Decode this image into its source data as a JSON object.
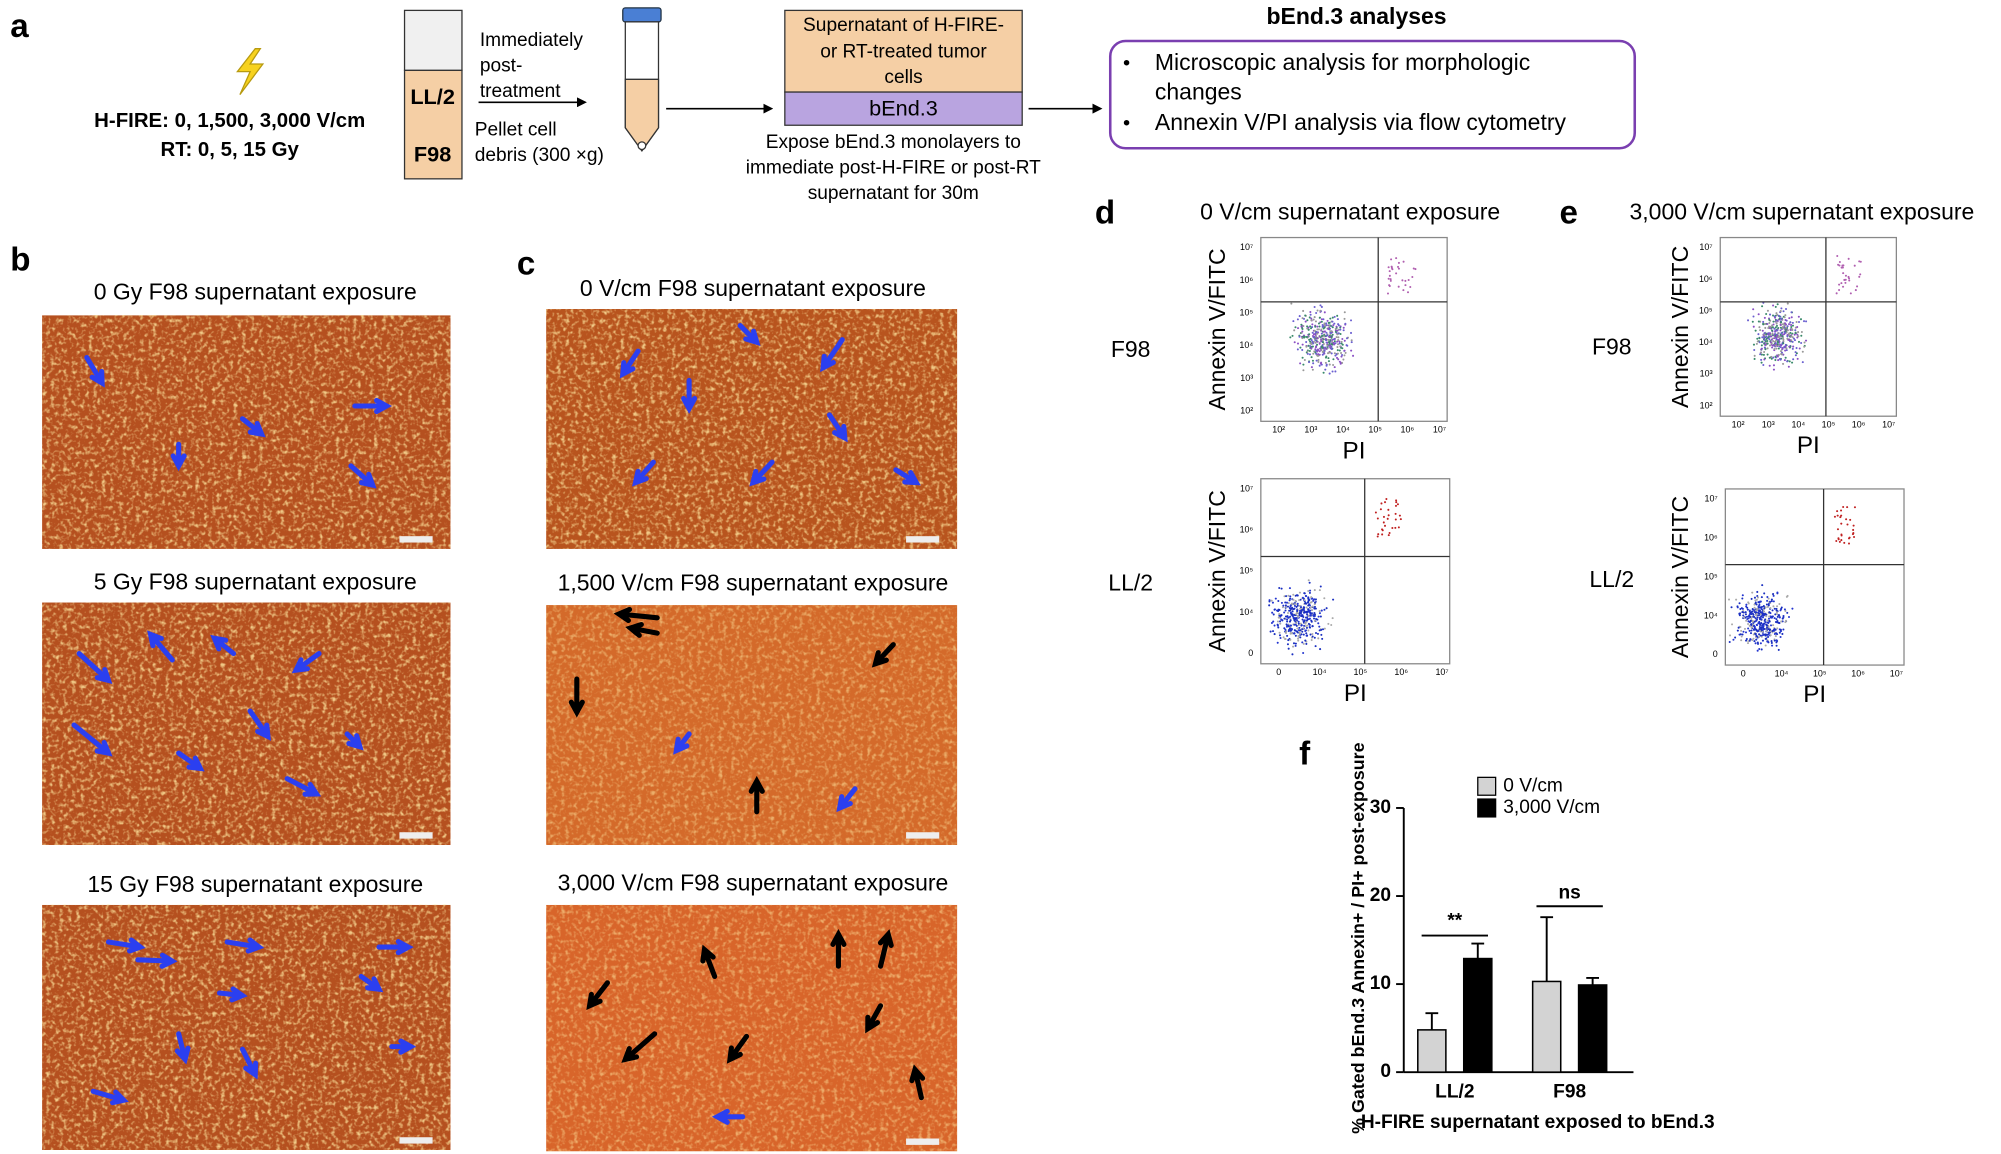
{
  "panel_a": {
    "label": "a",
    "energy_doses": [
      "H-FIRE: 0, 1,500, 3,000 V/cm",
      "RT: 0, 5, 15 Gy"
    ],
    "tube_cells": [
      "LL/2",
      "F98"
    ],
    "step1": [
      "Immediately",
      "post-",
      "treatment"
    ],
    "step2": [
      "Pellet cell",
      "debris (300 ×g)"
    ],
    "supernatant": [
      "Supernatant of H-FIRE-",
      "or RT-treated tumor",
      "cells"
    ],
    "target": "bEnd.3",
    "exposure": [
      "Expose bEnd.3 monolayers to",
      "immediate post-H-FIRE or post-RT",
      "supernatant for 30m"
    ],
    "analyses_title": "bEnd.3 analyses",
    "analyses": [
      [
        "Microscopic analysis for morphologic",
        "changes"
      ],
      [
        "Annexin V/PI analysis via flow cytometry"
      ]
    ]
  },
  "panel_b": {
    "label": "b",
    "titles": [
      "0 Gy F98 supernatant exposure",
      "5 Gy F98 supernatant exposure",
      "15 Gy F98 supernatant exposure"
    ]
  },
  "panel_c": {
    "label": "c",
    "titles": [
      "0 V/cm F98 supernatant exposure",
      "1,500 V/cm F98 supernatant exposure",
      "3,000 V/cm F98 supernatant exposure"
    ]
  },
  "panel_d": {
    "label": "d",
    "title": "0 V/cm supernatant exposure",
    "rows": [
      "F98",
      "LL/2"
    ],
    "y_label": "Annexin V/FITC",
    "x_label": "PI",
    "plots": [
      {
        "xticks": [
          "10²",
          "10³",
          "10⁴",
          "10⁵",
          "10⁶",
          "10⁷"
        ],
        "yticks": [
          "10⁷",
          "10⁶",
          "10⁵",
          "10⁴",
          "10³",
          "10²"
        ]
      },
      {
        "xticks": [
          "0",
          "10⁴",
          "10⁵",
          "10⁶",
          "10⁷"
        ],
        "yticks": [
          "10⁷",
          "10⁶",
          "10⁵",
          "10⁴",
          "0"
        ]
      }
    ]
  },
  "panel_e": {
    "label": "e",
    "title": "3,000 V/cm supernatant exposure",
    "rows": [
      "F98",
      "LL/2"
    ],
    "y_label": "Annexin V/FITC",
    "x_label": "PI",
    "plots": [
      {
        "xticks": [
          "10²",
          "10³",
          "10⁴",
          "10⁵",
          "10⁶",
          "10⁷"
        ],
        "yticks": [
          "10⁷",
          "10⁶",
          "10⁵",
          "10⁴",
          "10³",
          "10²"
        ]
      },
      {
        "xticks": [
          "0",
          "10⁴",
          "10⁵",
          "10⁶",
          "10⁷"
        ],
        "yticks": [
          "10⁷",
          "10⁶",
          "10⁵",
          "10⁴",
          "0"
        ]
      }
    ]
  },
  "chart_data": {
    "label": "f",
    "type": "bar",
    "y_label": "% Gated bEnd.3 Annexin+ / PI+ post-exposure",
    "x_label": "H-FIRE supernatant exposed to bEnd.3",
    "categories": [
      "LL/2",
      "F98"
    ],
    "series": [
      {
        "name": "0 V/cm",
        "color": "#d3d3d3",
        "values": [
          4.8,
          10.3
        ],
        "errors": [
          1.9,
          7.3
        ]
      },
      {
        "name": "3,000 V/cm",
        "color": "#000000",
        "values": [
          12.9,
          9.9
        ],
        "errors": [
          1.7,
          0.8
        ]
      }
    ],
    "ylim": [
      0,
      30
    ],
    "yticks": [
      0,
      10,
      20,
      30
    ],
    "annotations": [
      "**",
      "ns"
    ]
  }
}
